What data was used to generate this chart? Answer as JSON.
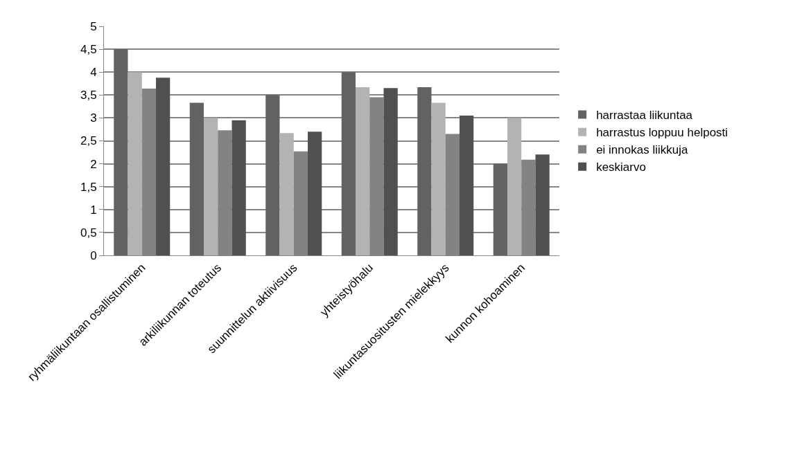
{
  "chart_data": {
    "type": "bar",
    "categories": [
      "ryhmäliikuntaan osallistuminen",
      "arkiliikunnan toteutus",
      "suunnittelun aktiivisuus",
      "yhteistyöhalu",
      "liikuntasuositusten mielekkyys",
      "kunnon kohoaminen"
    ],
    "series": [
      {
        "name": "harrastaa liikuntaa",
        "color": "#626262",
        "values": [
          4.5,
          3.33,
          3.5,
          4.0,
          3.67,
          2.0
        ]
      },
      {
        "name": "harrastus loppuu helposti",
        "color": "#b3b3b3",
        "values": [
          4.0,
          3.0,
          2.67,
          3.67,
          3.33,
          3.0
        ]
      },
      {
        "name": "ei innokas liikkuja",
        "color": "#838383",
        "values": [
          3.64,
          2.73,
          2.27,
          3.45,
          2.65,
          2.09
        ]
      },
      {
        "name": "keskiarvo",
        "color": "#505050",
        "values": [
          3.88,
          2.95,
          2.7,
          3.65,
          3.05,
          2.2
        ]
      }
    ],
    "ylim": [
      0,
      5
    ],
    "yticks": [
      0,
      {
        "value": 0.5,
        "label": "0,5"
      },
      1,
      {
        "value": 1.5,
        "label": "1,5"
      },
      2,
      {
        "value": 2.5,
        "label": "2,5"
      },
      3,
      {
        "value": 3.5,
        "label": "3,5"
      },
      4,
      {
        "value": 4.5,
        "label": "4,5"
      },
      5
    ],
    "grid": "y",
    "legend": "right"
  }
}
